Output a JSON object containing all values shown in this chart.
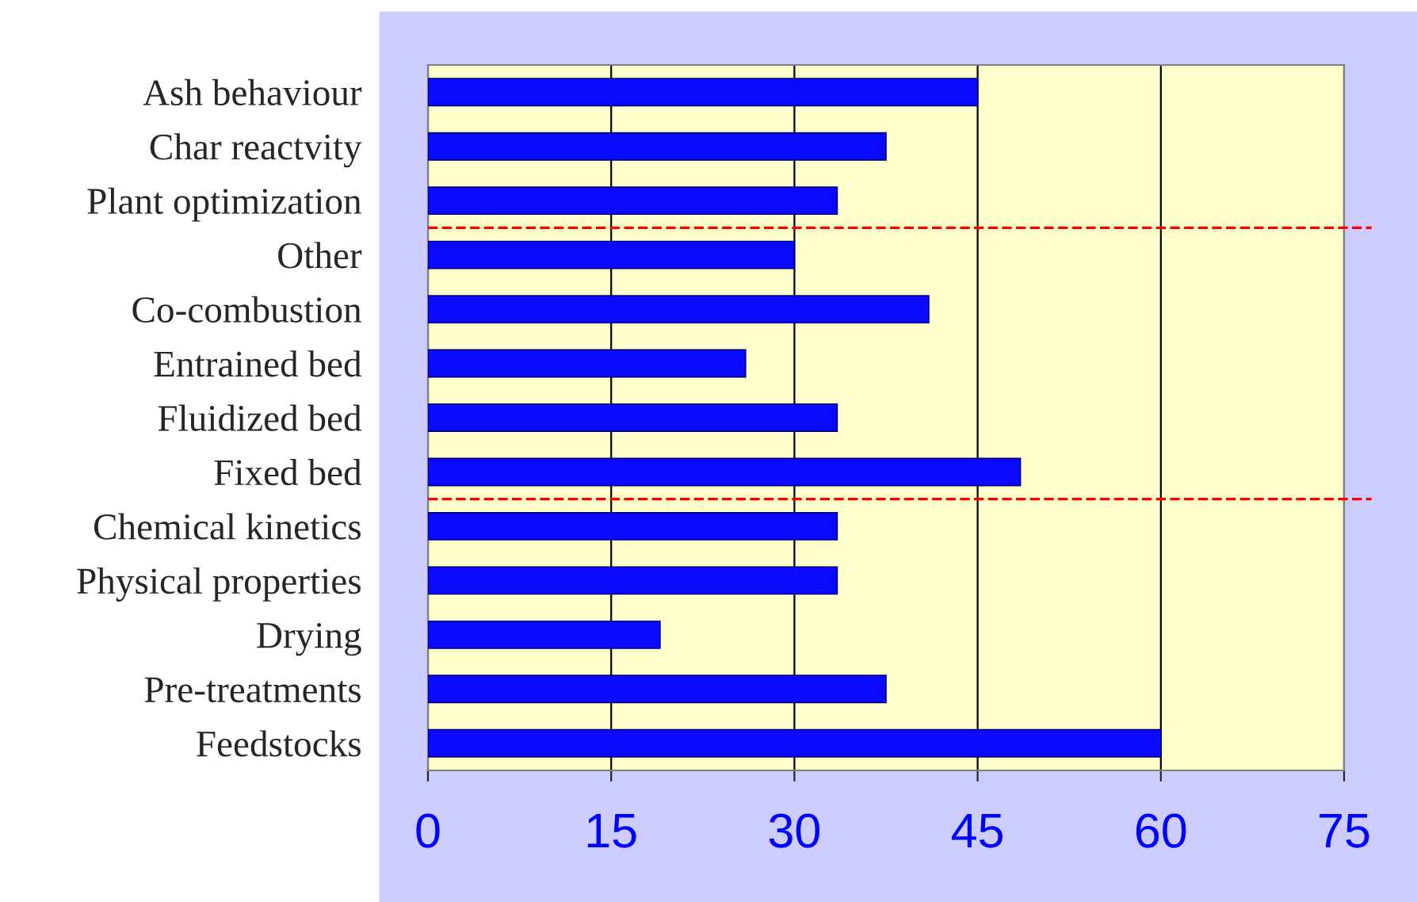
{
  "chart_data": {
    "type": "bar",
    "orientation": "horizontal",
    "categories": [
      "Ash behaviour",
      "Char reactvity",
      "Plant optimization",
      "Other",
      "Co-combustion",
      "Entrained bed",
      "Fluidized bed",
      "Fixed bed",
      "Chemical kinetics",
      "Physical properties",
      "Drying",
      "Pre-treatments",
      "Feedstocks"
    ],
    "values": [
      45,
      37.5,
      33.5,
      30,
      41,
      26,
      33.5,
      48.5,
      33.5,
      33.5,
      19,
      37.5,
      60
    ],
    "color": "#0a0aff",
    "xlim": [
      0,
      75
    ],
    "xticks": [
      0,
      15,
      30,
      45,
      60,
      75
    ],
    "grid": "x"
  }
}
